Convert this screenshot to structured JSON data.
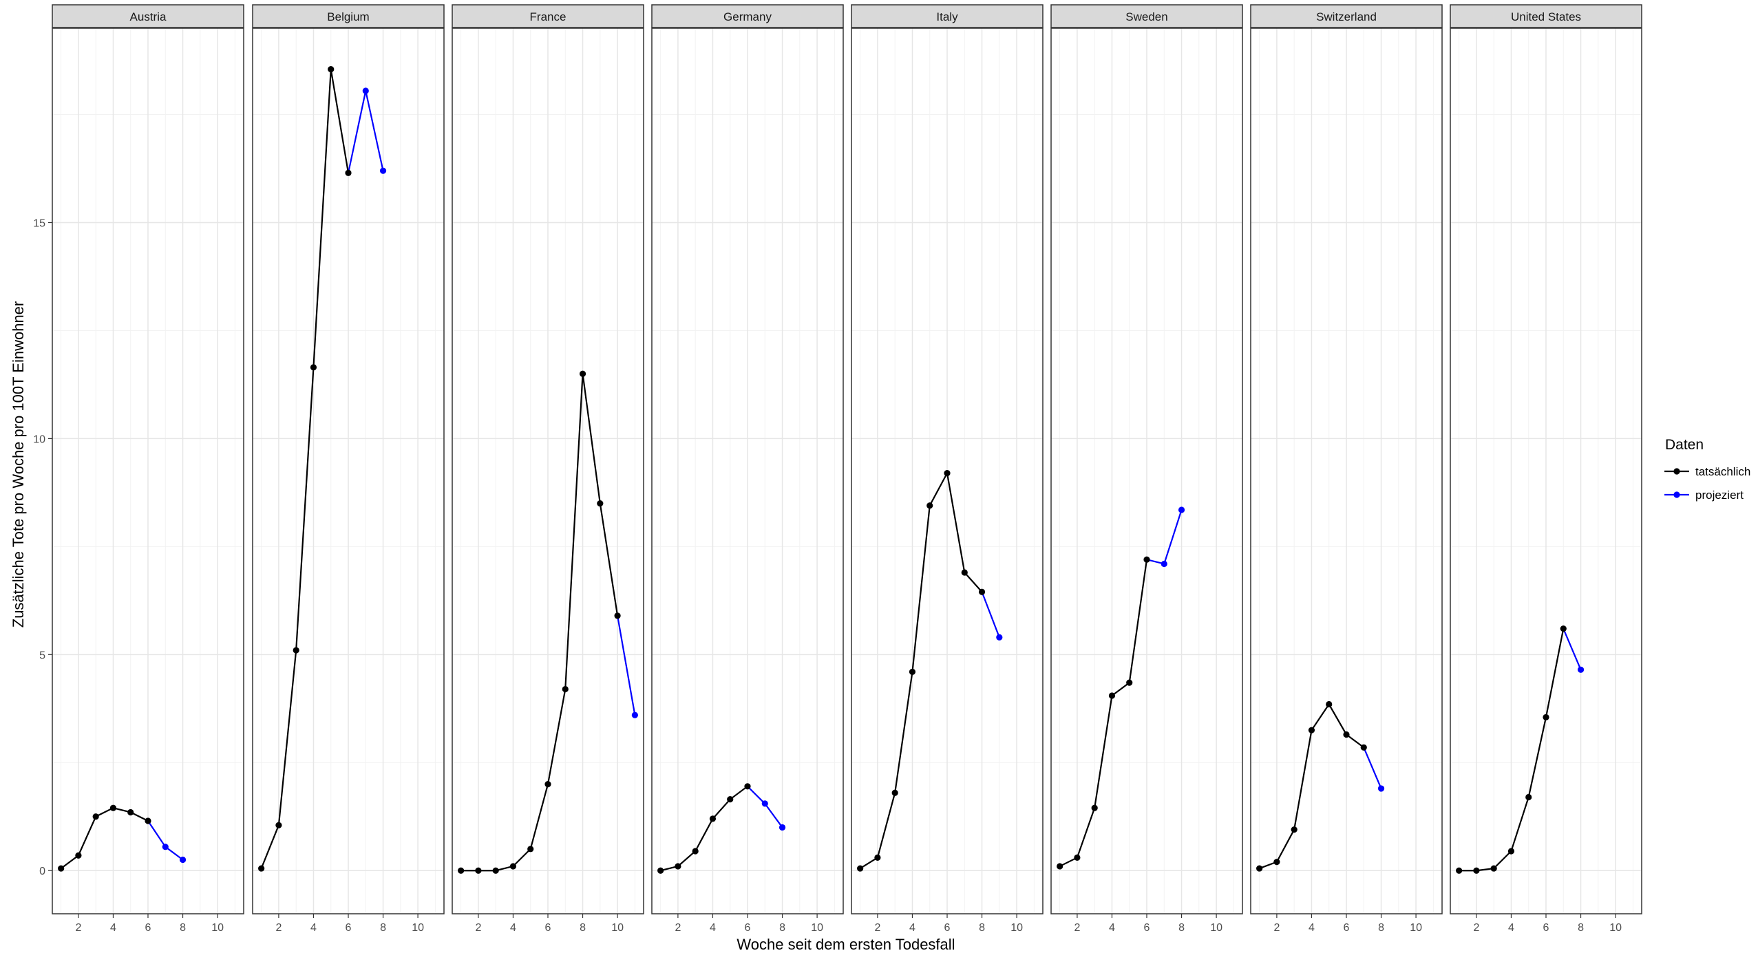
{
  "chart_data": {
    "type": "line",
    "xlabel": "Woche seit dem ersten Todesfall",
    "ylabel": "Zusätzliche Tote pro Woche pro 100T Einwohner",
    "xlim": [
      0.5,
      11.5
    ],
    "ylim": [
      -1.0,
      19.5
    ],
    "x_ticks": [
      2,
      4,
      6,
      8,
      10
    ],
    "y_ticks": [
      0,
      5,
      10,
      15
    ],
    "grid": true,
    "legend": {
      "title": "Daten",
      "position": "right",
      "entries": [
        {
          "label": "tatsächlich",
          "color": "#000000"
        },
        {
          "label": "projeziert",
          "color": "#0000ff"
        }
      ]
    },
    "colors": {
      "tatsaechlich": "#000000",
      "projeziert": "#0000ff"
    },
    "panels": [
      {
        "name": "Austria",
        "actual": [
          [
            1,
            0.05
          ],
          [
            2,
            0.35
          ],
          [
            3,
            1.25
          ],
          [
            4,
            1.45
          ],
          [
            5,
            1.35
          ],
          [
            6,
            1.15
          ]
        ],
        "projected": [
          [
            7,
            0.55
          ],
          [
            8,
            0.25
          ]
        ]
      },
      {
        "name": "Belgium",
        "actual": [
          [
            1,
            0.05
          ],
          [
            2,
            1.05
          ],
          [
            3,
            5.1
          ],
          [
            4,
            11.65
          ],
          [
            5,
            18.55
          ],
          [
            6,
            16.15
          ]
        ],
        "projected": [
          [
            7,
            18.05
          ],
          [
            8,
            16.2
          ]
        ]
      },
      {
        "name": "France",
        "actual": [
          [
            1,
            0.0
          ],
          [
            2,
            0.0
          ],
          [
            3,
            0.0
          ],
          [
            4,
            0.1
          ],
          [
            5,
            0.5
          ],
          [
            6,
            2.0
          ],
          [
            7,
            4.2
          ],
          [
            8,
            11.5
          ],
          [
            9,
            8.5
          ],
          [
            10,
            5.9
          ]
        ],
        "projected": [
          [
            11,
            3.6
          ]
        ]
      },
      {
        "name": "Germany",
        "actual": [
          [
            1,
            0.0
          ],
          [
            2,
            0.1
          ],
          [
            3,
            0.45
          ],
          [
            4,
            1.2
          ],
          [
            5,
            1.65
          ],
          [
            6,
            1.95
          ]
        ],
        "projected": [
          [
            7,
            1.55
          ],
          [
            8,
            1.0
          ]
        ]
      },
      {
        "name": "Italy",
        "actual": [
          [
            1,
            0.05
          ],
          [
            2,
            0.3
          ],
          [
            3,
            1.8
          ],
          [
            4,
            4.6
          ],
          [
            5,
            8.45
          ],
          [
            6,
            9.2
          ],
          [
            7,
            6.9
          ],
          [
            8,
            6.45
          ]
        ],
        "projected": [
          [
            9,
            5.4
          ]
        ]
      },
      {
        "name": "Sweden",
        "actual": [
          [
            1,
            0.1
          ],
          [
            2,
            0.3
          ],
          [
            3,
            1.45
          ],
          [
            4,
            4.05
          ],
          [
            5,
            4.35
          ],
          [
            6,
            7.2
          ]
        ],
        "projected": [
          [
            7,
            7.1
          ],
          [
            8,
            8.35
          ]
        ]
      },
      {
        "name": "Switzerland",
        "actual": [
          [
            1,
            0.05
          ],
          [
            2,
            0.2
          ],
          [
            3,
            0.95
          ],
          [
            4,
            3.25
          ],
          [
            5,
            3.85
          ],
          [
            6,
            3.15
          ],
          [
            7,
            2.85
          ]
        ],
        "projected": [
          [
            8,
            1.9
          ]
        ]
      },
      {
        "name": "United States",
        "actual": [
          [
            1,
            0.0
          ],
          [
            2,
            0.0
          ],
          [
            3,
            0.05
          ],
          [
            4,
            0.45
          ],
          [
            5,
            1.7
          ],
          [
            6,
            3.55
          ],
          [
            7,
            5.6
          ]
        ],
        "projected": [
          [
            8,
            4.65
          ]
        ]
      }
    ]
  }
}
